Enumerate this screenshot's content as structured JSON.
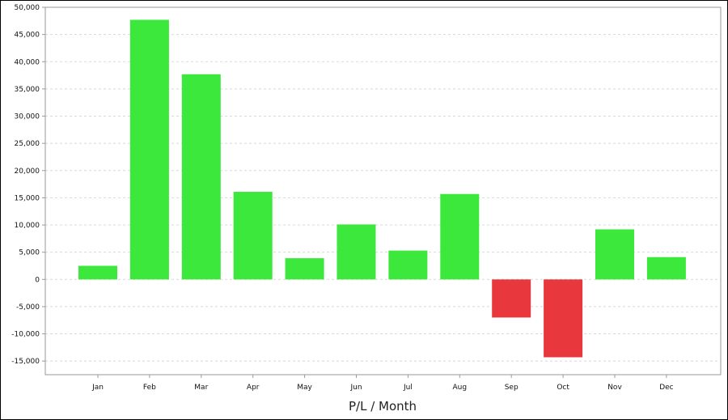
{
  "chart_data": {
    "type": "bar",
    "title": "",
    "xlabel": "P/L / Month",
    "ylabel": "",
    "categories": [
      "Jan",
      "Feb",
      "Mar",
      "Apr",
      "May",
      "Jun",
      "Jul",
      "Aug",
      "Sep",
      "Oct",
      "Nov",
      "Dec"
    ],
    "values": [
      2500,
      47700,
      37700,
      16100,
      3900,
      10100,
      5300,
      15700,
      -7000,
      -14300,
      9200,
      4100
    ],
    "ylim": [
      -17500,
      50000
    ],
    "yticks": [
      50000,
      45000,
      40000,
      35000,
      30000,
      25000,
      20000,
      15000,
      10000,
      5000,
      0,
      -5000,
      -10000,
      -15000
    ],
    "ytick_labels": [
      "50,000",
      "45,000",
      "40,000",
      "35,000",
      "30,000",
      "25,000",
      "20,000",
      "15,000",
      "10,000",
      "5,000",
      "0",
      "-5,000",
      "-10,000",
      "-15,000"
    ],
    "grid": true,
    "legend": "none",
    "colors": {
      "positive": "#3de83d",
      "negative": "#e8383d",
      "grid": "#d8d8d8",
      "axis": "#999999"
    }
  }
}
